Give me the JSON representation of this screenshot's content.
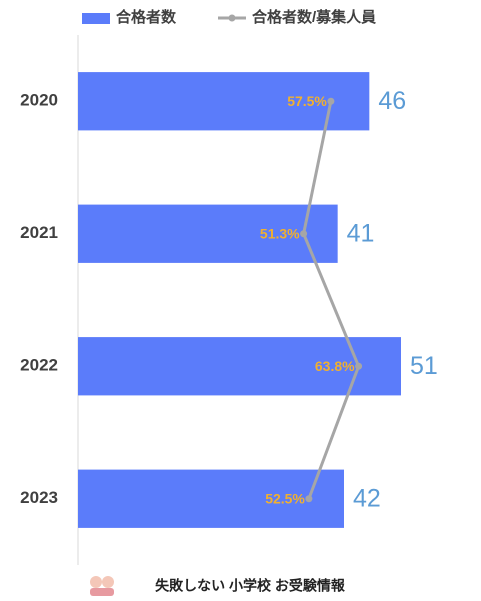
{
  "chart_data": {
    "type": "bar",
    "categories": [
      "2020",
      "2021",
      "2022",
      "2023"
    ],
    "series": [
      {
        "name": "合格者数",
        "type": "bar",
        "color": "#5b7cfa",
        "values": [
          46,
          41,
          51,
          42
        ]
      },
      {
        "name": "合格者数/募集人員",
        "type": "line",
        "axis": "x2",
        "color": "#a6a6a6",
        "label_color": "#f0b030",
        "values": [
          57.5,
          51.3,
          63.8,
          52.5
        ],
        "value_labels": [
          "57.5%",
          "51.3%",
          "63.8%",
          "52.5%"
        ]
      }
    ],
    "value_label_color": "#5b9bd5",
    "xlim": [
      0,
      60
    ],
    "x2lim": [
      0,
      86.4
    ],
    "orientation": "horizontal",
    "legend": "top",
    "footer": "失敗しない 小学校 お受験情報"
  }
}
